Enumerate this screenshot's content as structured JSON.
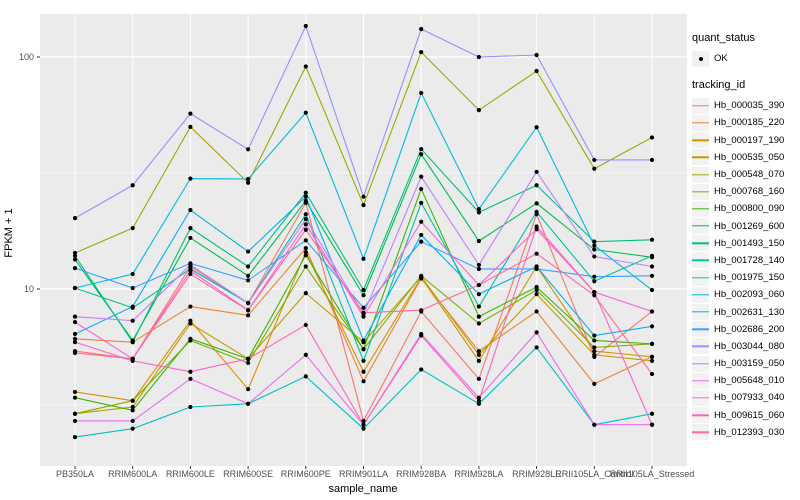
{
  "figure": {
    "y_axis_title": "FPKM + 1",
    "x_axis_title": "sample_name",
    "legend": {
      "quant_status_title": "quant_status",
      "quant_status_items": [
        "OK"
      ],
      "tracking_id_title": "tracking_id"
    },
    "style": {
      "panel_bg": "#EBEBEB",
      "grid_color": "#FFFFFF",
      "tick_color": "#333333",
      "tick_label_color": "#4D4D4D",
      "point_color": "#000000",
      "legend_key_bg": "#F2F2F2"
    }
  },
  "chart_data": {
    "type": "line",
    "title": "",
    "xlabel": "sample_name",
    "ylabel": "FPKM + 1",
    "x_type": "categorical",
    "y_scale": "log10",
    "grid": true,
    "legend_position": "right",
    "point_shape": "small-black-point",
    "y_ticks": [
      10,
      100
    ],
    "y_minor_ticks": [
      3.162,
      31.623
    ],
    "ylim": [
      1.73,
      153
    ],
    "categories": [
      "PB350LA",
      "RRIM600LA",
      "RRIM600LE",
      "RRIM600SE",
      "RRIM600PE",
      "RRIM901LA",
      "RRIM928BA",
      "RRIM928LA",
      "RRIM928LE",
      "RRII105LA_Control",
      "RRII105LA_Stressed"
    ],
    "series": [
      {
        "name": "Hb_000035_390",
        "color": "#F8766D",
        "values": [
          5.4,
          5.0,
          12.5,
          8.7,
          23.5,
          2.7,
          8.0,
          4.1,
          21.0,
          5.1,
          8.0
        ]
      },
      {
        "name": "Hb_000185_220",
        "color": "#EA8331",
        "values": [
          6.1,
          5.9,
          8.4,
          7.7,
          15.0,
          4.0,
          11.1,
          5.4,
          8.0,
          3.9,
          5.1
        ]
      },
      {
        "name": "Hb_000197_190",
        "color": "#D89000",
        "values": [
          3.6,
          3.3,
          7.3,
          3.7,
          14.4,
          4.4,
          11.2,
          4.9,
          12.5,
          5.4,
          5.1
        ]
      },
      {
        "name": "Hb_000535_050",
        "color": "#C09B00",
        "values": [
          2.9,
          3.1,
          7.1,
          5.0,
          9.6,
          5.9,
          11.3,
          5.2,
          9.5,
          5.2,
          4.9
        ]
      },
      {
        "name": "Hb_000548_070",
        "color": "#A3A500",
        "values": [
          14.3,
          18.3,
          50.0,
          28.7,
          91.0,
          23.0,
          105.0,
          59.0,
          87.0,
          33.0,
          45.0
        ]
      },
      {
        "name": "Hb_000768_160",
        "color": "#7CAE00",
        "values": [
          2.9,
          3.3,
          6.0,
          4.8,
          12.5,
          5.5,
          11.4,
          7.1,
          9.9,
          5.6,
          5.8
        ]
      },
      {
        "name": "Hb_000800_090",
        "color": "#39B600",
        "values": [
          3.4,
          3.0,
          6.1,
          5.0,
          14.0,
          5.5,
          27.0,
          7.6,
          10.2,
          6.0,
          5.8
        ]
      },
      {
        "name": "Hb_001269_600",
        "color": "#00BB4E",
        "values": [
          13.4,
          6.0,
          16.6,
          11.4,
          24.0,
          9.4,
          38.1,
          16.1,
          23.4,
          14.8,
          13.7
        ]
      },
      {
        "name": "Hb_001493_150",
        "color": "#00BF7D",
        "values": [
          13.9,
          5.9,
          18.3,
          12.5,
          26.0,
          9.9,
          40.1,
          21.4,
          28.0,
          16.0,
          16.3
        ]
      },
      {
        "name": "Hb_001728_140",
        "color": "#00C1A3",
        "values": [
          10.1,
          8.3,
          12.2,
          8.7,
          21.0,
          4.9,
          23.5,
          8.4,
          21.5,
          10.8,
          13.9
        ]
      },
      {
        "name": "Hb_001975_150",
        "color": "#00BFC4",
        "values": [
          2.3,
          2.5,
          3.1,
          3.2,
          4.2,
          2.5,
          4.5,
          3.2,
          5.6,
          2.6,
          2.9
        ]
      },
      {
        "name": "Hb_002093_060",
        "color": "#00BAE0",
        "values": [
          10.1,
          11.6,
          29.9,
          29.8,
          57.5,
          13.5,
          70.0,
          22.1,
          49.8,
          15.4,
          9.9
        ]
      },
      {
        "name": "Hb_002631_130",
        "color": "#00B0F6",
        "values": [
          6.4,
          8.4,
          21.9,
          14.5,
          25.0,
          6.0,
          17.1,
          9.5,
          12.5,
          6.3,
          6.9
        ]
      },
      {
        "name": "Hb_002686_200",
        "color": "#35A2FF",
        "values": [
          12.3,
          10.1,
          12.9,
          10.9,
          16.2,
          8.3,
          16.0,
          12.2,
          12.2,
          11.3,
          11.4
        ]
      },
      {
        "name": "Hb_003044_080",
        "color": "#9590FF",
        "values": [
          20.2,
          28.0,
          57.0,
          40.0,
          136.0,
          25.0,
          132.0,
          100.0,
          102.0,
          36.0,
          36.0
        ]
      },
      {
        "name": "Hb_003159_050",
        "color": "#C77CFF",
        "values": [
          7.6,
          7.3,
          12.7,
          8.7,
          20.0,
          7.8,
          30.5,
          12.7,
          32.0,
          13.8,
          12.5
        ]
      },
      {
        "name": "Hb_005648_010",
        "color": "#E76BF3",
        "values": [
          2.7,
          2.7,
          4.1,
          3.2,
          5.2,
          2.6,
          6.4,
          3.4,
          6.5,
          2.6,
          2.6
        ]
      },
      {
        "name": "Hb_007933_040",
        "color": "#FA62DB",
        "values": [
          7.2,
          5.0,
          12.0,
          8.1,
          19.0,
          7.6,
          19.5,
          10.4,
          18.1,
          9.7,
          8.0
        ]
      },
      {
        "name": "Hb_009615_060",
        "color": "#FF62BC",
        "values": [
          5.9,
          4.9,
          4.4,
          5.0,
          7.0,
          2.6,
          6.3,
          3.3,
          18.6,
          9.7,
          2.6
        ]
      },
      {
        "name": "Hb_012393_030",
        "color": "#FF6A98",
        "values": [
          5.3,
          5.0,
          11.6,
          8.1,
          18.0,
          7.9,
          8.1,
          10.4,
          14.2,
          9.4,
          4.3
        ]
      }
    ]
  }
}
